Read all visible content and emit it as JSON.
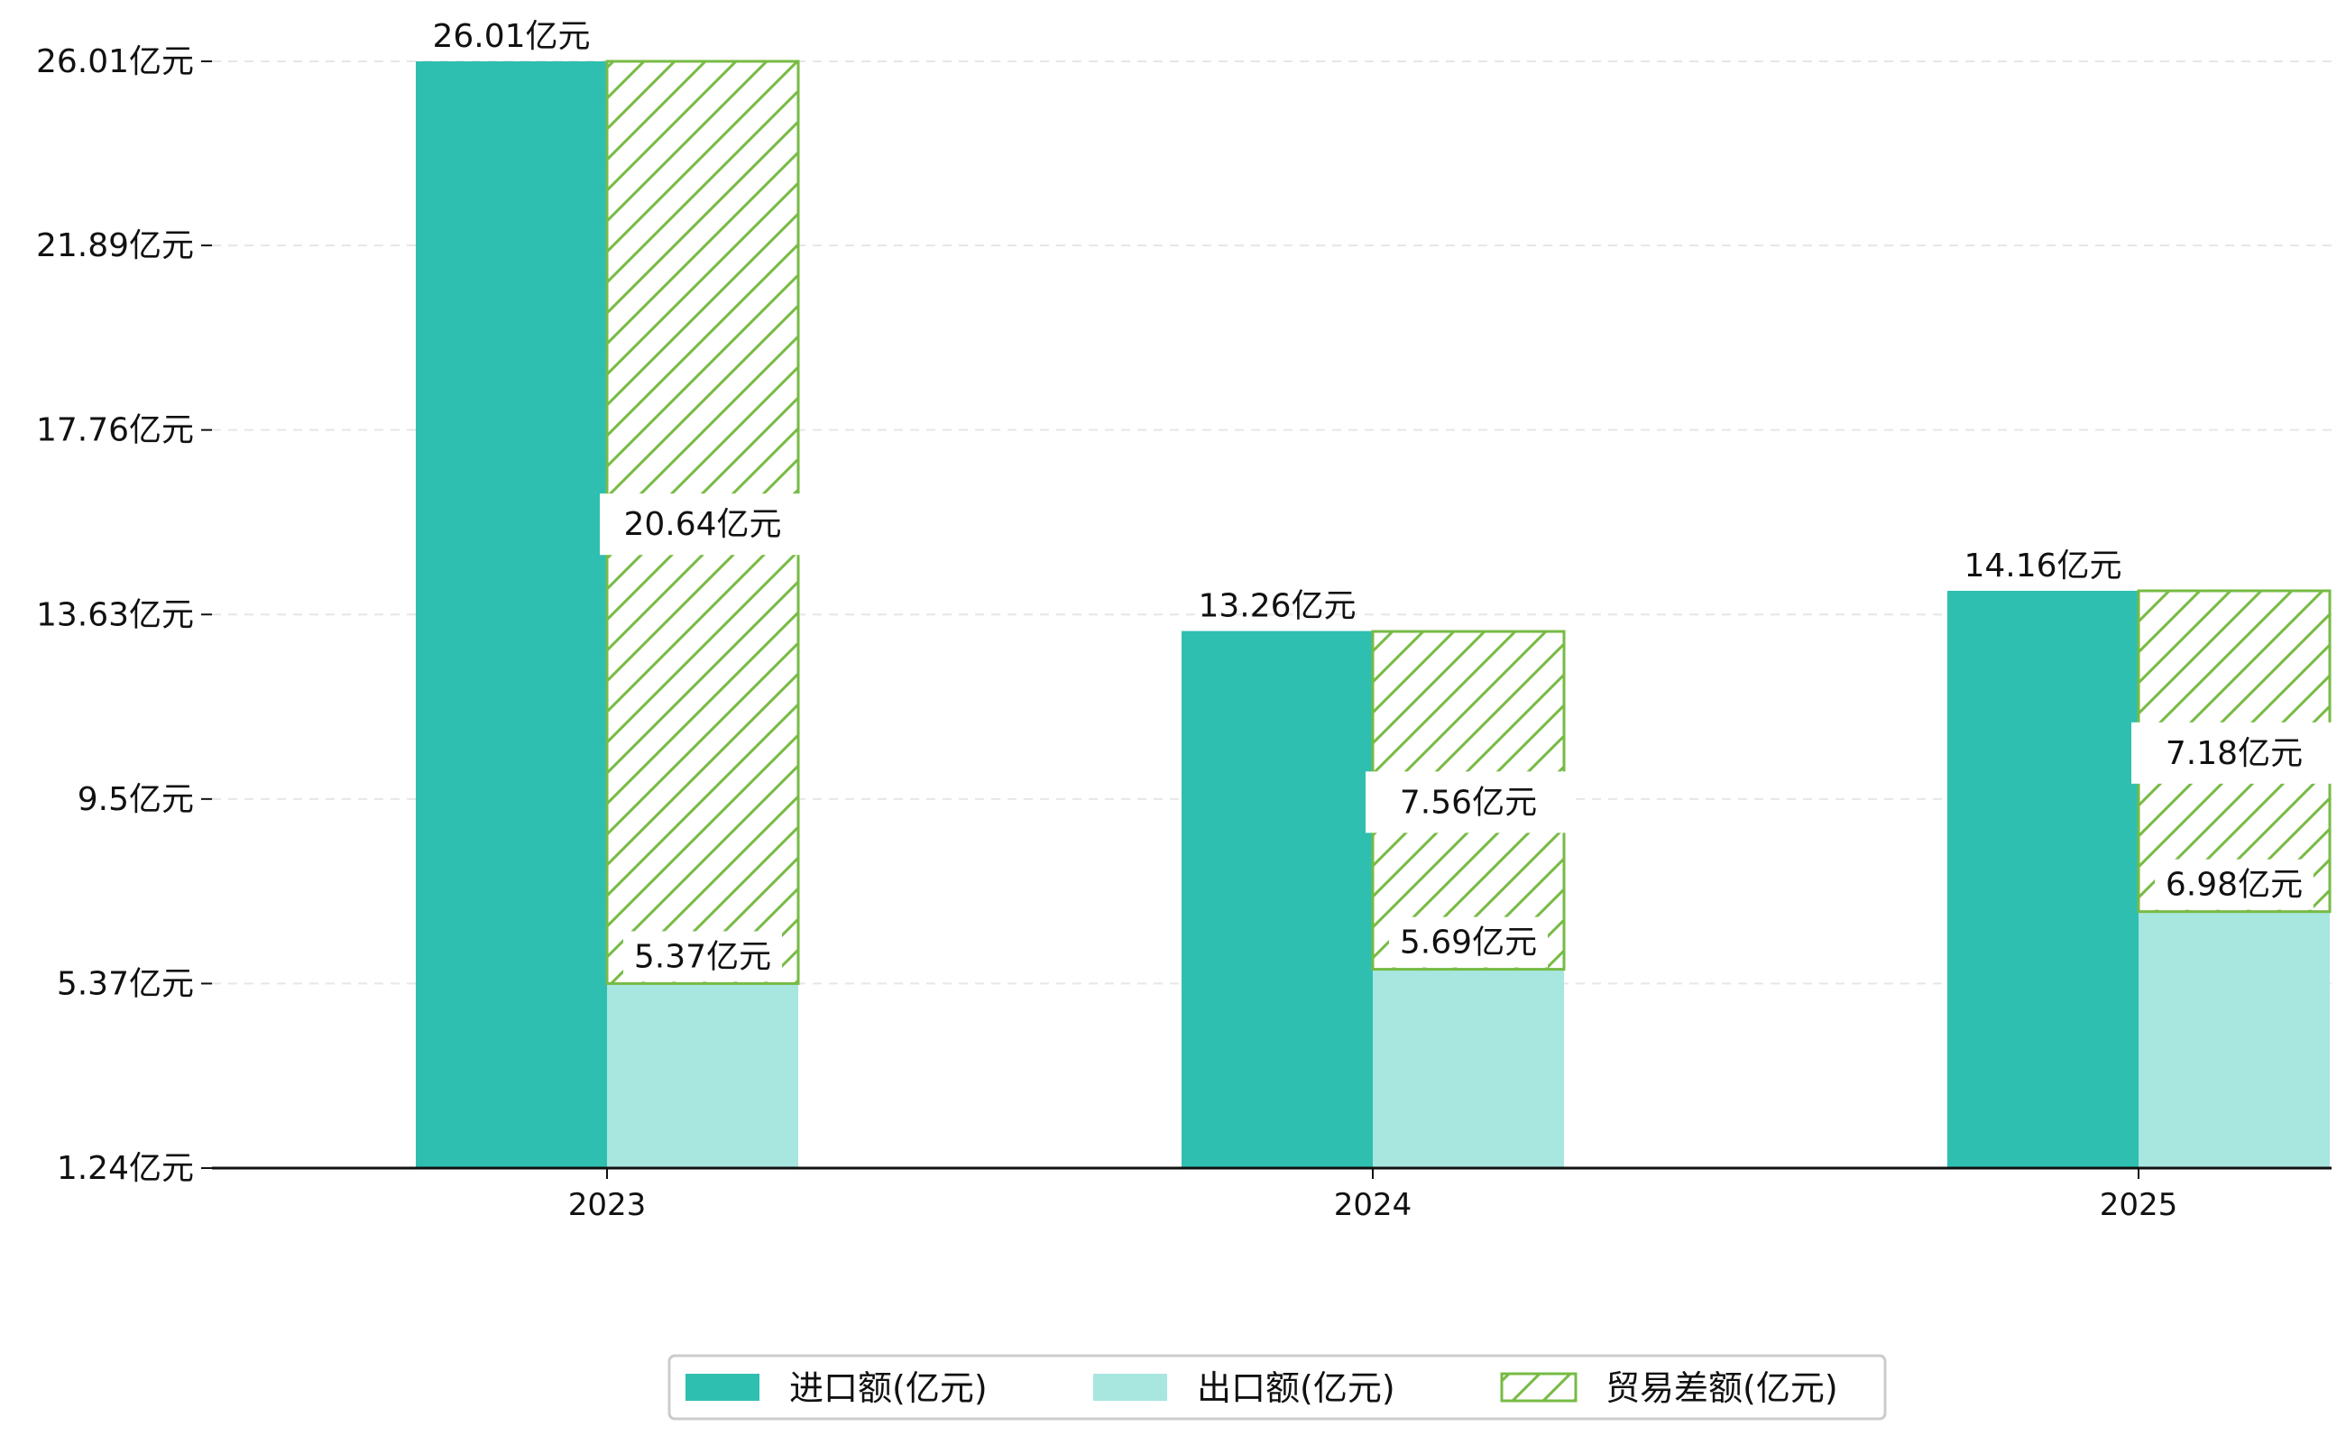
{
  "chart_data": {
    "type": "bar",
    "title": "",
    "xlabel": "",
    "ylabel": "",
    "categories": [
      "2023",
      "2024",
      "2025"
    ],
    "ylim": [
      1.24,
      26.01
    ],
    "yticks": [
      1.24,
      5.37,
      9.5,
      13.63,
      17.76,
      21.89,
      26.01
    ],
    "ytick_labels": [
      "1.24亿元",
      "5.37亿元",
      "9.5亿元",
      "13.63亿元",
      "17.76亿元",
      "21.89亿元",
      "26.01亿元"
    ],
    "grid": true,
    "legend_position": "bottom-center",
    "series": [
      {
        "name": "进口额(亿元)",
        "values": [
          26.01,
          13.26,
          14.16
        ],
        "labels": [
          "26.01亿元",
          "13.26亿元",
          "14.16亿元"
        ],
        "color": "#2fbfb0",
        "pattern": "solid"
      },
      {
        "name": "出口额(亿元)",
        "values": [
          5.37,
          5.69,
          6.98
        ],
        "labels": [
          "5.37亿元",
          "5.69亿元",
          "6.98亿元"
        ],
        "color": "#a8e6e0",
        "pattern": "solid"
      },
      {
        "name": "贸易差额(亿元)",
        "values": [
          20.64,
          7.56,
          7.18
        ],
        "labels": [
          "20.64亿元",
          "7.56亿元",
          "7.18亿元"
        ],
        "color": "#77bb44",
        "pattern": "hatch",
        "stacked_on": "出口额(亿元)"
      }
    ]
  }
}
